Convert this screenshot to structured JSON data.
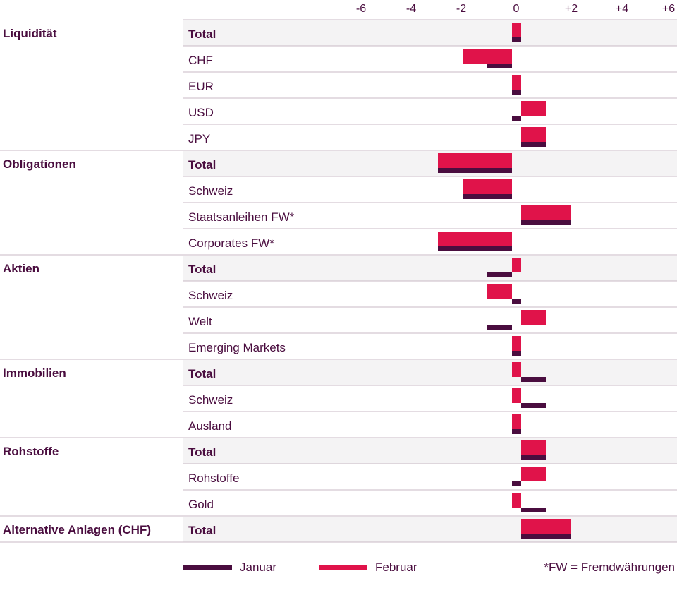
{
  "colors": {
    "januar": "#4a0d3f",
    "februar": "#e0134a",
    "text": "#4a0d3f",
    "row_shade": "#f4f3f4",
    "separator": "#c9b8c4"
  },
  "chart_data": {
    "type": "bar",
    "orientation": "horizontal",
    "x_ticks": [
      "-6",
      "-4",
      "-2",
      "0",
      "+2",
      "+4",
      "+6"
    ],
    "xlim": [
      -6,
      6
    ],
    "grid": false,
    "legend_position": "bottom",
    "series": [
      {
        "name": "Januar",
        "color": "#4a0d3f"
      },
      {
        "name": "Februar",
        "color": "#e0134a"
      }
    ],
    "groups": [
      {
        "name": "Liquidität",
        "rows": [
          {
            "label": "Total",
            "bold": true,
            "januar": 0,
            "februar": 0
          },
          {
            "label": "CHF",
            "bold": false,
            "januar": -1,
            "februar": -2
          },
          {
            "label": "EUR",
            "bold": false,
            "januar": 0,
            "februar": 0
          },
          {
            "label": "USD",
            "bold": false,
            "januar": 0,
            "februar": 1
          },
          {
            "label": "JPY",
            "bold": false,
            "januar": 1,
            "februar": 1
          }
        ]
      },
      {
        "name": "Obligationen",
        "rows": [
          {
            "label": "Total",
            "bold": true,
            "januar": -3,
            "februar": -3
          },
          {
            "label": "Schweiz",
            "bold": false,
            "januar": -2,
            "februar": -2
          },
          {
            "label": "Staatsanleihen FW*",
            "bold": false,
            "januar": 2,
            "februar": 2
          },
          {
            "label": "Corporates FW*",
            "bold": false,
            "januar": -3,
            "februar": -3
          }
        ]
      },
      {
        "name": "Aktien",
        "rows": [
          {
            "label": "Total",
            "bold": true,
            "januar": -1,
            "februar": 0
          },
          {
            "label": "Schweiz",
            "bold": false,
            "januar": 0,
            "februar": -1
          },
          {
            "label": "Welt",
            "bold": false,
            "januar": -1,
            "februar": 1
          },
          {
            "label": "Emerging Markets",
            "bold": false,
            "januar": 0,
            "februar": 0
          }
        ]
      },
      {
        "name": "Immobilien",
        "rows": [
          {
            "label": "Total",
            "bold": true,
            "januar": 1,
            "februar": 0
          },
          {
            "label": "Schweiz",
            "bold": false,
            "januar": 1,
            "februar": 0
          },
          {
            "label": "Ausland",
            "bold": false,
            "januar": 0,
            "februar": 0
          }
        ]
      },
      {
        "name": "Rohstoffe",
        "rows": [
          {
            "label": "Total",
            "bold": true,
            "januar": 1,
            "februar": 1
          },
          {
            "label": "Rohstoffe",
            "bold": false,
            "januar": 0,
            "februar": 1
          },
          {
            "label": "Gold",
            "bold": false,
            "januar": 1,
            "februar": 0
          }
        ]
      },
      {
        "name": "Alternative Anlagen (CHF)",
        "rows": [
          {
            "label": "Total",
            "bold": true,
            "januar": 2,
            "februar": 2
          }
        ]
      }
    ],
    "footnote": "*FW = Fremdwährungen"
  }
}
